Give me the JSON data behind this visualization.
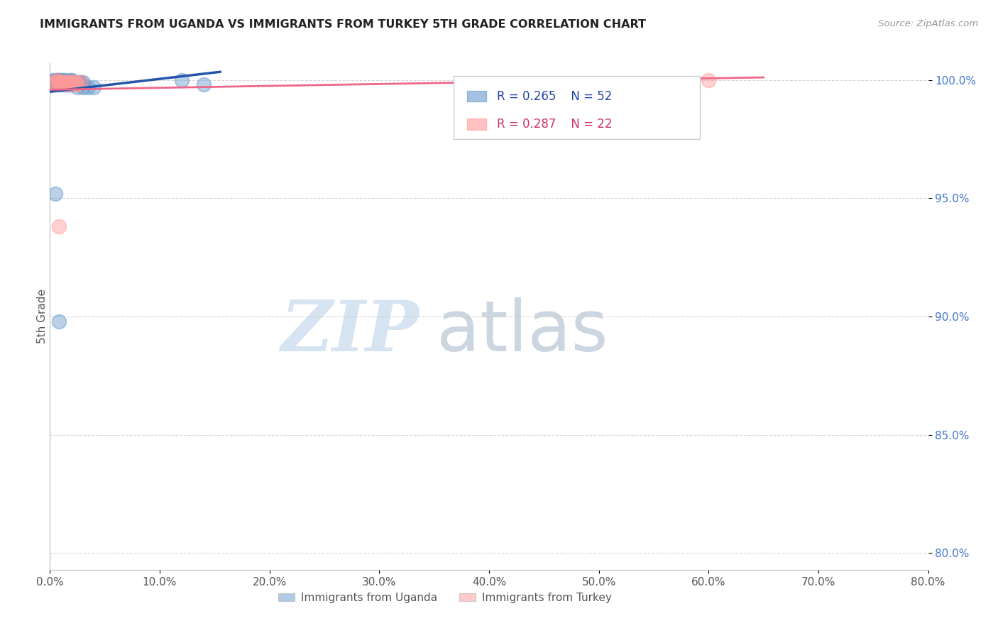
{
  "title": "IMMIGRANTS FROM UGANDA VS IMMIGRANTS FROM TURKEY 5TH GRADE CORRELATION CHART",
  "source": "Source: ZipAtlas.com",
  "ylabel": "5th Grade",
  "x_tick_labels": [
    "0.0%",
    "10.0%",
    "20.0%",
    "30.0%",
    "40.0%",
    "50.0%",
    "60.0%",
    "70.0%",
    "80.0%"
  ],
  "y_tick_labels": [
    "80.0%",
    "85.0%",
    "90.0%",
    "95.0%",
    "100.0%"
  ],
  "xlim": [
    0.0,
    0.8
  ],
  "ylim": [
    0.793,
    1.007
  ],
  "x_ticks": [
    0.0,
    0.1,
    0.2,
    0.3,
    0.4,
    0.5,
    0.6,
    0.7,
    0.8
  ],
  "y_ticks": [
    0.8,
    0.85,
    0.9,
    0.95,
    1.0
  ],
  "legend_label_uganda": "Immigrants from Uganda",
  "legend_label_turkey": "Immigrants from Turkey",
  "r_uganda": "R = 0.265",
  "n_uganda": "N = 52",
  "r_turkey": "R = 0.287",
  "n_turkey": "N = 22",
  "uganda_color": "#6699CC",
  "turkey_color": "#FF9999",
  "trendline_uganda_color": "#2255AA",
  "trendline_turkey_color": "#EE6688",
  "watermark_zip": "ZIP",
  "watermark_atlas": "atlas",
  "watermark_color_zip": "#C5D8EC",
  "watermark_color_atlas": "#AABBCC",
  "uganda_points_x": [
    0.002,
    0.003,
    0.004,
    0.005,
    0.005,
    0.006,
    0.006,
    0.007,
    0.007,
    0.008,
    0.009,
    0.009,
    0.01,
    0.01,
    0.011,
    0.012,
    0.013,
    0.013,
    0.014,
    0.015,
    0.015,
    0.016,
    0.017,
    0.018,
    0.019,
    0.02,
    0.02,
    0.021,
    0.022,
    0.023,
    0.025,
    0.027,
    0.028,
    0.03,
    0.003,
    0.004,
    0.006,
    0.008,
    0.01,
    0.012,
    0.014,
    0.016,
    0.018,
    0.02,
    0.025,
    0.03,
    0.035,
    0.04,
    0.12,
    0.14,
    0.005,
    0.008
  ],
  "uganda_points_y": [
    1.0,
    0.999,
    0.999,
    0.999,
    1.0,
    0.999,
    1.0,
    0.999,
    1.0,
    1.0,
    0.999,
    1.0,
    0.999,
    1.0,
    0.999,
    0.999,
    0.999,
    1.0,
    0.999,
    0.999,
    1.0,
    0.999,
    0.999,
    0.999,
    1.0,
    0.999,
    1.0,
    0.999,
    0.999,
    0.999,
    0.999,
    0.999,
    0.999,
    0.999,
    0.998,
    0.998,
    0.998,
    0.998,
    0.998,
    0.998,
    0.998,
    0.998,
    0.998,
    0.998,
    0.997,
    0.997,
    0.997,
    0.997,
    1.0,
    0.998,
    0.952,
    0.898
  ],
  "turkey_points_x": [
    0.003,
    0.005,
    0.007,
    0.008,
    0.009,
    0.01,
    0.011,
    0.013,
    0.014,
    0.015,
    0.017,
    0.019,
    0.021,
    0.023,
    0.025,
    0.028,
    0.013,
    0.016,
    0.02,
    0.024,
    0.6,
    0.008
  ],
  "turkey_points_y": [
    0.999,
    0.999,
    1.0,
    0.999,
    0.999,
    0.999,
    0.999,
    0.999,
    0.999,
    0.998,
    0.999,
    0.999,
    0.998,
    0.999,
    0.998,
    0.999,
    0.999,
    0.999,
    0.999,
    0.999,
    1.0,
    0.938
  ]
}
